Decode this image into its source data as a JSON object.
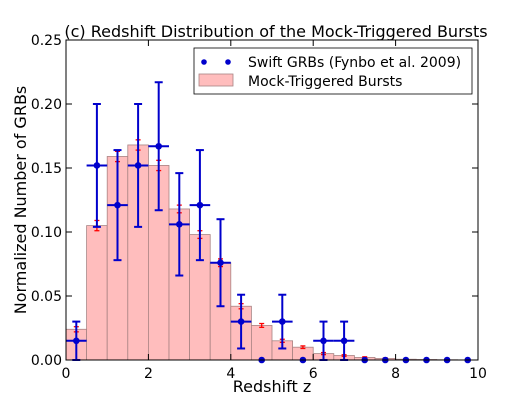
{
  "chart_data": {
    "type": "bar",
    "title": "(c) Redshift Distribution of the Mock-Triggered Bursts",
    "xlabel": "Redshift z",
    "ylabel": "Normalized Number of GRBs",
    "xlim": [
      0,
      10
    ],
    "ylim": [
      0,
      0.25
    ],
    "xticks": [
      "0",
      "2",
      "4",
      "6",
      "8",
      "10"
    ],
    "yticks": [
      "0.00",
      "0.05",
      "0.10",
      "0.15",
      "0.20",
      "0.25"
    ],
    "legend_position": "top-right",
    "grid": false,
    "bin_width": 0.5,
    "series": [
      {
        "name": "Mock-Triggered Bursts",
        "kind": "histogram",
        "color": "#ffbdbd",
        "edge_color": "#a98383",
        "error_color": "#ff0000",
        "bin_edges_start": [
          0.0,
          0.5,
          1.0,
          1.5,
          2.0,
          2.5,
          3.0,
          3.5,
          4.0,
          4.5,
          5.0,
          5.5,
          6.0,
          6.5,
          7.0,
          7.5,
          8.0,
          8.5,
          9.0,
          9.5
        ],
        "values": [
          0.024,
          0.105,
          0.159,
          0.168,
          0.152,
          0.118,
          0.098,
          0.076,
          0.042,
          0.027,
          0.015,
          0.01,
          0.005,
          0.0035,
          0.002,
          0.0012,
          0.0006,
          0.0004,
          0.0002,
          0.0001
        ],
        "errors": [
          0.002,
          0.004,
          0.004,
          0.004,
          0.004,
          0.003,
          0.003,
          0.003,
          0.002,
          0.0015,
          0.0012,
          0.001,
          0.0008,
          0.0006,
          0.0005,
          0.0004,
          0.0003,
          0.0002,
          0.0001,
          0.0001
        ]
      },
      {
        "name": "Swift GRBs (Fynbo et al. 2009)",
        "kind": "scatter-errorbar",
        "color": "#0000cc",
        "x": [
          0.25,
          0.75,
          1.25,
          1.75,
          2.25,
          2.75,
          3.25,
          3.75,
          4.25,
          4.75,
          5.25,
          5.75,
          6.25,
          6.75,
          7.25,
          7.75,
          8.25,
          8.75,
          9.25,
          9.75
        ],
        "y": [
          0.015,
          0.152,
          0.121,
          0.152,
          0.167,
          0.106,
          0.121,
          0.076,
          0.03,
          0.0,
          0.03,
          0.0,
          0.015,
          0.015,
          0.0,
          0.0,
          0.0,
          0.0,
          0.0,
          0.0
        ],
        "yerr": [
          0.015,
          0.048,
          0.043,
          0.048,
          0.05,
          0.04,
          0.043,
          0.034,
          0.021,
          0.0,
          0.021,
          0.0,
          0.015,
          0.015,
          0.0,
          0.0,
          0.0,
          0.0,
          0.0,
          0.0
        ],
        "xerr": [
          0.25,
          0.25,
          0.25,
          0.25,
          0.25,
          0.25,
          0.25,
          0.25,
          0.25,
          0.25,
          0.25,
          0.25,
          0.25,
          0.25,
          0.25,
          0.25,
          0.25,
          0.25,
          0.25,
          0.25
        ]
      }
    ]
  }
}
